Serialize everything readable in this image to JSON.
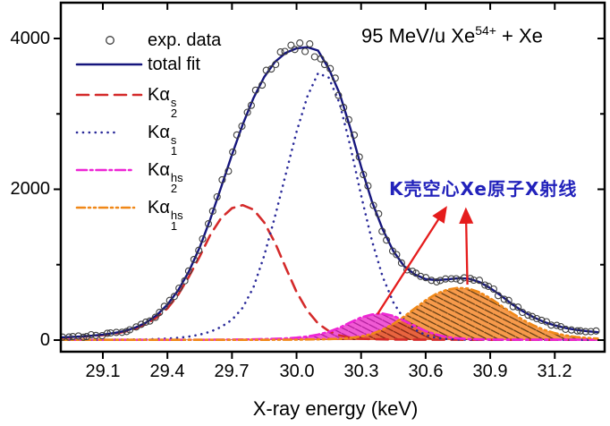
{
  "figure": {
    "beam_annotation": {
      "prefix": "95 MeV/u Xe",
      "sup": "54+",
      "suffix": " + Xe"
    },
    "cjk_annotation": "K壳空心Xe原子X射线"
  },
  "legend": {
    "items": [
      {
        "label": "exp. data"
      },
      {
        "label": "total fit"
      },
      {
        "base": "Kα",
        "sub": "2",
        "sup": "s"
      },
      {
        "base": "Kα",
        "sub": "1",
        "sup": "s"
      },
      {
        "base": "Kα",
        "sub": "2",
        "sup": "hs"
      },
      {
        "base": "Kα",
        "sub": "1",
        "sup": "hs"
      }
    ]
  },
  "chart_data": {
    "type": "line",
    "title": "",
    "xlabel": "X-ray energy (keV)",
    "ylabel": "",
    "xlim": [
      28.905,
      31.43
    ],
    "ylim": [
      -155,
      4475
    ],
    "x_ticks": [
      29.1,
      29.4,
      29.7,
      30.0,
      30.3,
      30.6,
      30.9,
      31.2
    ],
    "x_tick_labels": [
      "29.1",
      "29.4",
      "29.7",
      "30.0",
      "30.3",
      "30.6",
      "30.9",
      "31.2"
    ],
    "y_ticks_major": [
      0,
      2000,
      4000
    ],
    "y_tick_labels": [
      "0",
      "2000",
      "4000"
    ],
    "y_ticks_minor": [
      1000,
      3000
    ],
    "grid": false,
    "legend_position": "upper-left",
    "x": [
      28.9,
      28.95,
      29.0,
      29.05,
      29.1,
      29.15,
      29.2,
      29.25,
      29.3,
      29.35,
      29.4,
      29.45,
      29.5,
      29.55,
      29.6,
      29.65,
      29.7,
      29.75,
      29.8,
      29.85,
      29.9,
      29.95,
      30.0,
      30.05,
      30.1,
      30.15,
      30.2,
      30.25,
      30.3,
      30.35,
      30.4,
      30.45,
      30.5,
      30.55,
      30.6,
      30.65,
      30.7,
      30.75,
      30.8,
      30.85,
      30.9,
      30.95,
      31.0,
      31.05,
      31.1,
      31.15,
      31.2,
      31.25,
      31.3,
      31.35,
      31.4
    ],
    "series": [
      {
        "name": "total fit",
        "style": "solid",
        "color": "#15157d",
        "values": [
          35,
          40,
          48,
          58,
          72,
          92,
          120,
          165,
          230,
          330,
          470,
          660,
          910,
          1230,
          1610,
          2030,
          2460,
          2860,
          3210,
          3490,
          3690,
          3810,
          3870,
          3885,
          3840,
          3600,
          3270,
          2810,
          2300,
          1840,
          1470,
          1180,
          980,
          870,
          810,
          795,
          805,
          820,
          815,
          770,
          690,
          590,
          480,
          385,
          305,
          240,
          195,
          160,
          135,
          118,
          105
        ]
      },
      {
        "name": "Ka2_s",
        "style": "dashed",
        "color": "#d42a2a",
        "values": [
          30,
          36,
          44,
          54,
          66,
          84,
          110,
          150,
          210,
          300,
          420,
          600,
          840,
          1110,
          1400,
          1620,
          1750,
          1790,
          1730,
          1560,
          1290,
          960,
          640,
          390,
          220,
          120,
          62,
          32,
          18,
          12,
          9,
          7,
          6,
          5,
          5,
          5,
          5,
          5,
          4,
          4,
          4,
          4,
          4,
          4,
          4,
          4,
          4,
          4,
          4,
          4,
          4
        ]
      },
      {
        "name": "Ka1_s",
        "style": "dotted",
        "color": "#2a2a99",
        "values": [
          3,
          3,
          3,
          4,
          4,
          5,
          6,
          8,
          10,
          14,
          20,
          30,
          46,
          72,
          112,
          175,
          270,
          430,
          700,
          1120,
          1640,
          2200,
          2760,
          3230,
          3540,
          3480,
          3140,
          2570,
          1920,
          1320,
          840,
          500,
          275,
          140,
          66,
          30,
          14,
          8,
          6,
          5,
          4,
          4,
          3,
          3,
          3,
          3,
          3,
          3,
          3,
          3,
          3
        ]
      },
      {
        "name": "Ka2_hs",
        "style": "dashdot",
        "color": "#ee25d5",
        "fill": "#f05ad4",
        "hatch": "#b01d9a",
        "values": [
          4,
          4,
          4,
          4,
          4,
          4,
          4,
          4,
          4,
          4,
          4,
          4,
          4,
          4,
          5,
          6,
          7,
          8,
          10,
          13,
          17,
          23,
          32,
          48,
          72,
          110,
          165,
          235,
          300,
          340,
          352,
          322,
          258,
          186,
          120,
          72,
          40,
          22,
          13,
          9,
          7,
          6,
          5,
          5,
          5,
          5,
          5,
          5,
          5,
          5,
          5
        ]
      },
      {
        "name": "Ka1_hs",
        "style": "dashdotdot",
        "color": "#f08818",
        "fill": "#f79a4b",
        "hatch": "#5f3a10",
        "values": [
          4,
          4,
          4,
          4,
          4,
          4,
          4,
          4,
          4,
          4,
          4,
          4,
          4,
          4,
          4,
          4,
          4,
          4,
          4,
          4,
          5,
          5,
          6,
          8,
          10,
          13,
          18,
          28,
          48,
          82,
          138,
          215,
          312,
          420,
          528,
          615,
          668,
          692,
          682,
          635,
          555,
          458,
          360,
          272,
          196,
          136,
          92,
          62,
          42,
          28,
          20
        ]
      }
    ],
    "overlap_fill": {
      "color": "#e8643f",
      "hatch": "#7d2410",
      "note": "shaded intersection of Ka2_hs and Ka1_hs humps"
    },
    "exp_data": {
      "marker": "open-circle",
      "color": "#3f3f3f",
      "note": "open circles scattered about the total fit curve"
    },
    "annotation_arrows": [
      {
        "from_e": 30.376,
        "from_c": 344,
        "to_e": 30.692,
        "to_c": 1745
      },
      {
        "from_e": 30.794,
        "from_c": 736,
        "to_e": 30.787,
        "to_c": 1721
      }
    ],
    "arrow_color": "#e51c1c"
  }
}
